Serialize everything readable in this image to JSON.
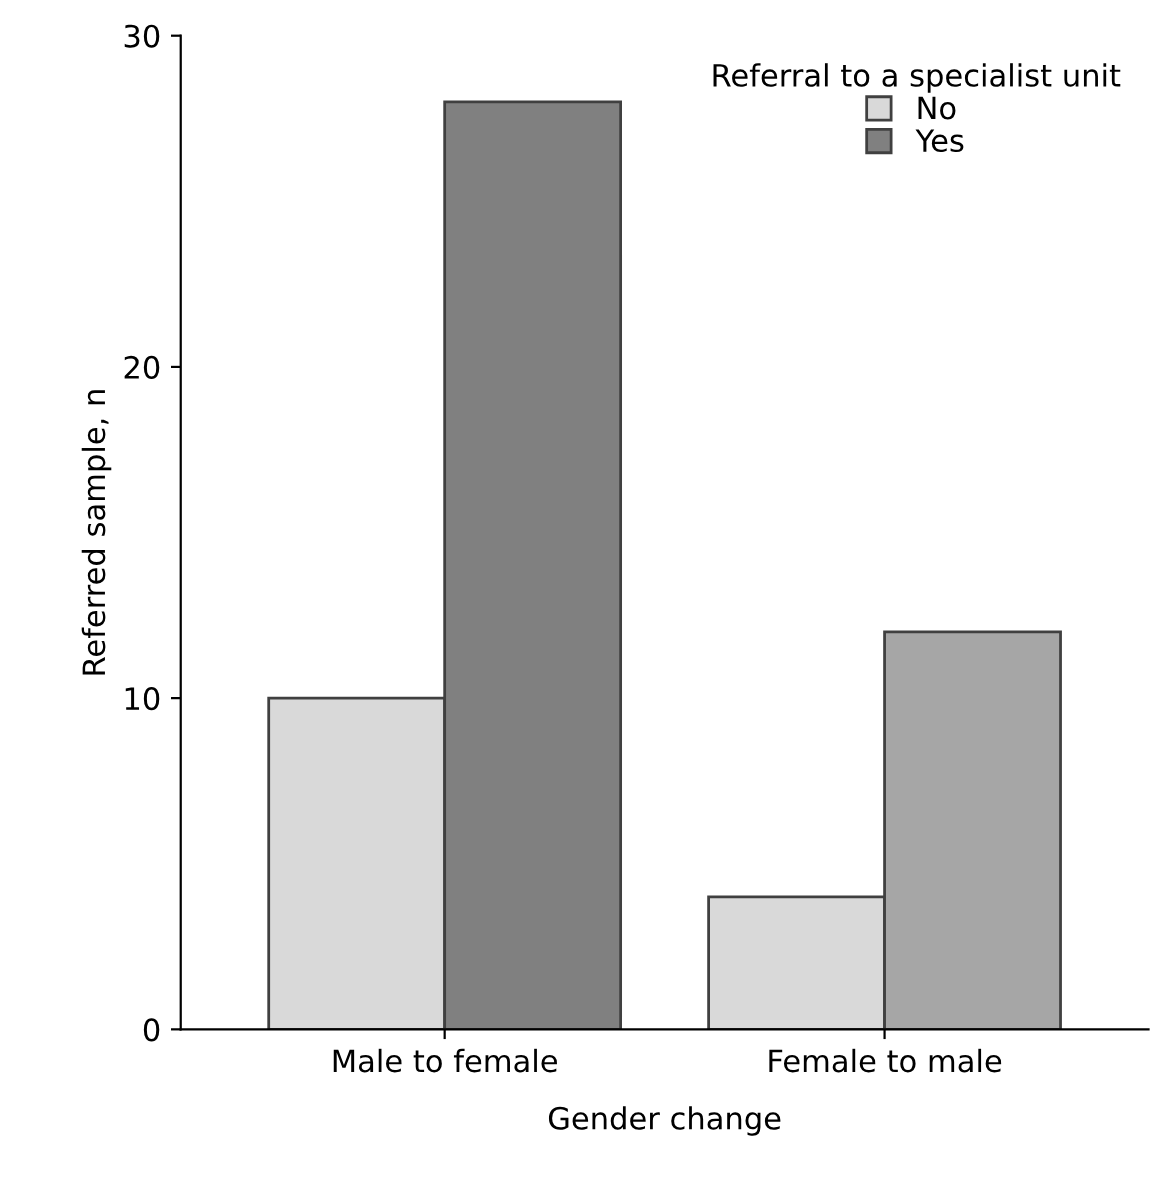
{
  "chart_data": {
    "type": "bar",
    "xlabel": "Gender change",
    "ylabel": "Referred sample, n",
    "legend_title": "Referral to a specialist unit",
    "categories": [
      "Male to female",
      "Female to male"
    ],
    "series": [
      {
        "name": "No",
        "color": "#d9d9d9",
        "colors": [
          "#d9d9d9",
          "#d9d9d9"
        ],
        "values": [
          10,
          4
        ]
      },
      {
        "name": "Yes",
        "color": "#808080",
        "colors": [
          "#808080",
          "#a6a6a6"
        ],
        "values": [
          28,
          12
        ]
      }
    ],
    "ylim": [
      0,
      30
    ],
    "yticks": [
      0,
      10,
      20,
      30
    ],
    "grid": false,
    "legend": "top right"
  }
}
